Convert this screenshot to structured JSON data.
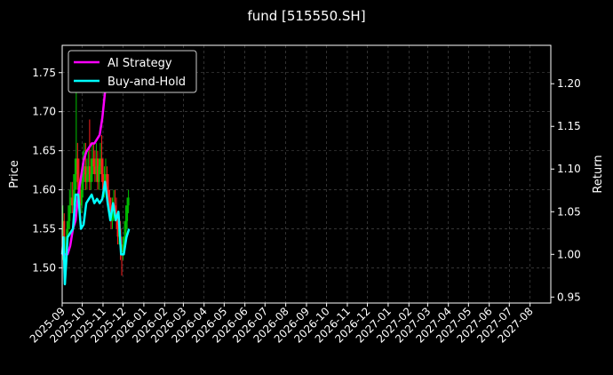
{
  "chart_data": {
    "type": "line",
    "title": "fund [515550.SH]",
    "ylabel_left": "Price",
    "ylabel_right": "Return",
    "grid": true,
    "legend_position": "top-left",
    "colors": {
      "background": "#000000",
      "text": "#ffffff",
      "grid": "#555555",
      "up_candle": "#00c000",
      "down_candle": "#ff2020",
      "ai_strategy": "#ff00ff",
      "buy_and_hold": "#00ffff"
    },
    "x_ticks": [
      "2025-09",
      "2025-10",
      "2025-11",
      "2025-12",
      "2026-01",
      "2026-02",
      "2026-03",
      "2026-04",
      "2026-05",
      "2026-06",
      "2026-07",
      "2026-08",
      "2026-09",
      "2026-10",
      "2026-11",
      "2026-12",
      "2027-01",
      "2027-02",
      "2027-03",
      "2027-04",
      "2027-05",
      "2027-06",
      "2027-07",
      "2027-08"
    ],
    "xlim": [
      "2025-09-01",
      "2027-09-01"
    ],
    "left_axis": {
      "ylim": [
        1.455,
        1.785
      ],
      "ticks": [
        "1.50",
        "1.55",
        "1.60",
        "1.65",
        "1.70",
        "1.75"
      ]
    },
    "right_axis": {
      "ylim": [
        0.943,
        1.245
      ],
      "ticks": [
        "0.95",
        "1.00",
        "1.05",
        "1.10",
        "1.15",
        "1.20"
      ]
    },
    "series": [
      {
        "name": "AI Strategy",
        "axis": "right",
        "color": "#ff00ff",
        "x": [
          "2025-09-01",
          "2025-09-05",
          "2025-09-09",
          "2025-09-13",
          "2025-09-17",
          "2025-09-21",
          "2025-09-25",
          "2025-09-29",
          "2025-10-03",
          "2025-10-07",
          "2025-10-11",
          "2025-10-15",
          "2025-10-19",
          "2025-10-23",
          "2025-10-27",
          "2025-10-31",
          "2025-11-04",
          "2025-11-08",
          "2025-11-12",
          "2025-11-16",
          "2025-11-20",
          "2025-11-24",
          "2025-11-28",
          "2025-12-02",
          "2025-12-06",
          "2025-12-10"
        ],
        "values": [
          1.0,
          1.0,
          1.0,
          1.01,
          1.03,
          1.04,
          1.07,
          1.09,
          1.11,
          1.12,
          1.125,
          1.13,
          1.13,
          1.135,
          1.14,
          1.16,
          1.19,
          1.2,
          1.2,
          1.21,
          1.21,
          1.205,
          1.205,
          1.21,
          1.22,
          1.23
        ]
      },
      {
        "name": "Buy-and-Hold",
        "axis": "right",
        "color": "#00ffff",
        "x": [
          "2025-09-01",
          "2025-09-03",
          "2025-09-05",
          "2025-09-07",
          "2025-09-09",
          "2025-09-13",
          "2025-09-17",
          "2025-09-21",
          "2025-09-25",
          "2025-09-29",
          "2025-10-03",
          "2025-10-07",
          "2025-10-11",
          "2025-10-15",
          "2025-10-19",
          "2025-10-23",
          "2025-10-27",
          "2025-10-31",
          "2025-11-04",
          "2025-11-08",
          "2025-11-12",
          "2025-11-16",
          "2025-11-20",
          "2025-11-24",
          "2025-11-28",
          "2025-12-02",
          "2025-12-06",
          "2025-12-10"
        ],
        "values": [
          1.0,
          1.02,
          0.965,
          0.99,
          1.02,
          1.025,
          1.03,
          1.07,
          1.07,
          1.03,
          1.035,
          1.06,
          1.065,
          1.07,
          1.06,
          1.065,
          1.06,
          1.065,
          1.085,
          1.06,
          1.04,
          1.06,
          1.04,
          1.05,
          1.0,
          1.0,
          1.02,
          1.03
        ]
      }
    ],
    "candles": {
      "axis": "left",
      "x": [
        "2025-09-02",
        "2025-09-04",
        "2025-09-06",
        "2025-09-08",
        "2025-09-10",
        "2025-09-12",
        "2025-09-14",
        "2025-09-16",
        "2025-09-18",
        "2025-09-20",
        "2025-09-22",
        "2025-09-24",
        "2025-09-26",
        "2025-09-28",
        "2025-09-30",
        "2025-10-02",
        "2025-10-04",
        "2025-10-06",
        "2025-10-08",
        "2025-10-10",
        "2025-10-12",
        "2025-10-14",
        "2025-10-16",
        "2025-10-18",
        "2025-10-20",
        "2025-10-22",
        "2025-10-24",
        "2025-10-26",
        "2025-10-28",
        "2025-10-30",
        "2025-11-01",
        "2025-11-03",
        "2025-11-05",
        "2025-11-07",
        "2025-11-09",
        "2025-11-11",
        "2025-11-13",
        "2025-11-15",
        "2025-11-17",
        "2025-11-19",
        "2025-11-21",
        "2025-11-23",
        "2025-11-25",
        "2025-11-27",
        "2025-11-29",
        "2025-12-01",
        "2025-12-03",
        "2025-12-05",
        "2025-12-07",
        "2025-12-09"
      ],
      "open": [
        1.53,
        1.56,
        1.5,
        1.52,
        1.55,
        1.56,
        1.58,
        1.59,
        1.58,
        1.6,
        1.62,
        1.64,
        1.61,
        1.6,
        1.58,
        1.6,
        1.62,
        1.63,
        1.61,
        1.62,
        1.63,
        1.61,
        1.62,
        1.64,
        1.63,
        1.62,
        1.64,
        1.61,
        1.63,
        1.64,
        1.62,
        1.6,
        1.61,
        1.62,
        1.6,
        1.59,
        1.58,
        1.56,
        1.57,
        1.58,
        1.57,
        1.56,
        1.54,
        1.55,
        1.53,
        1.52,
        1.53,
        1.54,
        1.56,
        1.58
      ],
      "close": [
        1.56,
        1.5,
        1.52,
        1.55,
        1.56,
        1.58,
        1.59,
        1.58,
        1.6,
        1.62,
        1.64,
        1.61,
        1.6,
        1.58,
        1.6,
        1.62,
        1.63,
        1.61,
        1.62,
        1.63,
        1.61,
        1.62,
        1.64,
        1.63,
        1.62,
        1.64,
        1.61,
        1.63,
        1.64,
        1.62,
        1.6,
        1.61,
        1.62,
        1.6,
        1.59,
        1.58,
        1.56,
        1.57,
        1.58,
        1.57,
        1.56,
        1.54,
        1.55,
        1.53,
        1.52,
        1.53,
        1.54,
        1.56,
        1.58,
        1.59
      ],
      "high": [
        1.58,
        1.57,
        1.54,
        1.56,
        1.58,
        1.6,
        1.61,
        1.61,
        1.62,
        1.64,
        1.73,
        1.66,
        1.64,
        1.61,
        1.62,
        1.65,
        1.66,
        1.66,
        1.64,
        1.65,
        1.69,
        1.64,
        1.66,
        1.66,
        1.65,
        1.66,
        1.65,
        1.64,
        1.66,
        1.67,
        1.64,
        1.63,
        1.64,
        1.63,
        1.62,
        1.6,
        1.59,
        1.59,
        1.6,
        1.6,
        1.59,
        1.57,
        1.56,
        1.56,
        1.54,
        1.54,
        1.56,
        1.58,
        1.59,
        1.6
      ],
      "low": [
        1.51,
        1.49,
        1.48,
        1.51,
        1.54,
        1.55,
        1.57,
        1.57,
        1.57,
        1.59,
        1.6,
        1.6,
        1.59,
        1.57,
        1.57,
        1.59,
        1.61,
        1.6,
        1.6,
        1.61,
        1.6,
        1.6,
        1.61,
        1.62,
        1.61,
        1.61,
        1.6,
        1.6,
        1.62,
        1.61,
        1.59,
        1.59,
        1.6,
        1.59,
        1.58,
        1.57,
        1.55,
        1.55,
        1.56,
        1.56,
        1.55,
        1.53,
        1.53,
        1.51,
        1.49,
        1.51,
        1.52,
        1.53,
        1.55,
        1.57
      ]
    }
  }
}
